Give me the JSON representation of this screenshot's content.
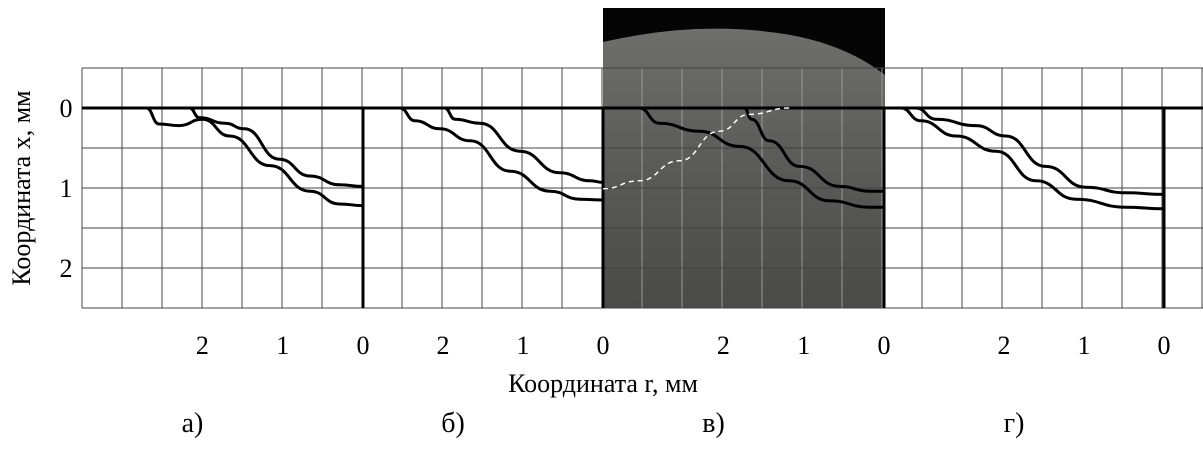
{
  "xlabel": "Координата r, мм",
  "ylabel": "Координата x, мм",
  "chart_data": [
    {
      "type": "line",
      "title": "а)",
      "xlim": [
        3.5,
        0
      ],
      "ylim": [
        -0.5,
        2.5
      ],
      "xticks": [
        2,
        1,
        0
      ],
      "yticks": [
        0,
        1,
        2
      ],
      "series": [
        {
          "color": "#000000",
          "x": [
            2.7,
            2.54,
            2.29,
            2.0,
            1.66,
            1.16,
            0.66,
            0.29,
            0
          ],
          "values": [
            0,
            0.2,
            0.22,
            0.14,
            0.35,
            0.72,
            1.04,
            1.2,
            1.22
          ]
        },
        {
          "color": "#000000",
          "x": [
            2.16,
            2.04,
            1.72,
            1.48,
            1.04,
            0.66,
            0.29,
            0
          ],
          "values": [
            0,
            0.12,
            0.19,
            0.26,
            0.64,
            0.85,
            0.96,
            0.98
          ]
        }
      ]
    },
    {
      "type": "line",
      "title": "б)",
      "xlim": [
        3,
        0
      ],
      "ylim": [
        -0.5,
        2.5
      ],
      "xticks": [
        2,
        1,
        0
      ],
      "series": [
        {
          "color": "#000000",
          "x": [
            2.54,
            2.35,
            2.04,
            1.66,
            1.16,
            0.66,
            0.29,
            0
          ],
          "values": [
            0,
            0.16,
            0.26,
            0.41,
            0.79,
            1.04,
            1.14,
            1.15
          ]
        },
        {
          "color": "#000000",
          "x": [
            1.98,
            1.85,
            1.54,
            1.04,
            0.54,
            0.16,
            0
          ],
          "values": [
            0,
            0.14,
            0.19,
            0.54,
            0.81,
            0.91,
            0.93
          ]
        }
      ]
    },
    {
      "type": "line",
      "title": "в)",
      "xlim": [
        3.5,
        0
      ],
      "ylim": [
        -0.5,
        2.5
      ],
      "xticks": [
        2,
        1,
        0
      ],
      "series": [
        {
          "color": "#000000",
          "x": [
            3.05,
            2.8,
            2.3,
            1.8,
            1.18,
            0.68,
            0.18,
            0
          ],
          "values": [
            0,
            0.19,
            0.29,
            0.48,
            0.91,
            1.16,
            1.24,
            1.24
          ]
        },
        {
          "color": "#000000",
          "x": [
            1.74,
            1.65,
            1.43,
            1.05,
            0.55,
            0.18,
            0
          ],
          "values": [
            0,
            0.14,
            0.41,
            0.73,
            0.98,
            1.04,
            1.04
          ]
        },
        {
          "color": "#ffffff",
          "dashed": true,
          "x": [
            3.5,
            3.05,
            2.55,
            2.05,
            1.68,
            1.18
          ],
          "values": [
            1.01,
            0.91,
            0.66,
            0.29,
            0.08,
            0
          ]
        }
      ]
    },
    {
      "type": "line",
      "title": "г)",
      "xlim": [
        3.5,
        -0.5
      ],
      "ylim": [
        -0.5,
        2.5
      ],
      "xticks": [
        2,
        1,
        0
      ],
      "series": [
        {
          "color": "#000000",
          "x": [
            3.29,
            3.04,
            2.6,
            2.1,
            1.6,
            1.1,
            0.48,
            0
          ],
          "values": [
            0,
            0.16,
            0.35,
            0.54,
            0.91,
            1.14,
            1.24,
            1.26
          ]
        },
        {
          "color": "#000000",
          "x": [
            3.1,
            2.85,
            2.35,
            1.98,
            1.48,
            0.98,
            0.48,
            0
          ],
          "values": [
            0,
            0.14,
            0.22,
            0.35,
            0.73,
            0.99,
            1.06,
            1.08
          ]
        }
      ]
    }
  ]
}
